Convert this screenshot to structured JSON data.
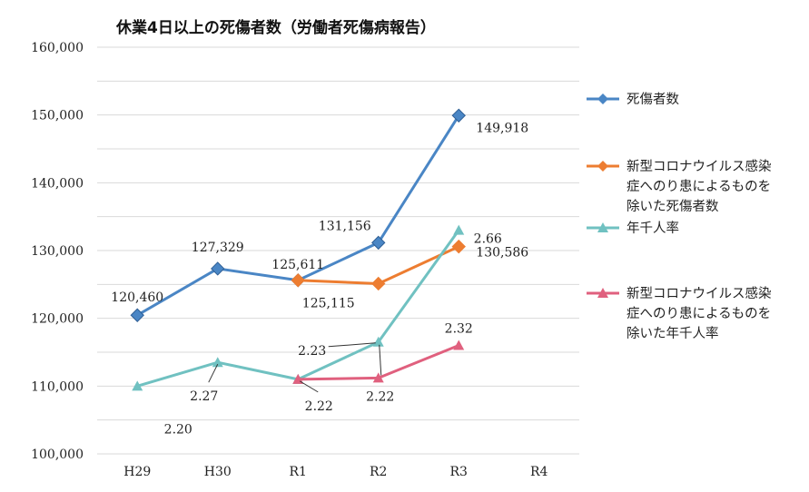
{
  "chart_data": {
    "type": "line",
    "title": "休業4日以上の死傷者数（労働者死傷病報告）",
    "categories": [
      "H29",
      "H30",
      "R1",
      "R2",
      "R3",
      "R4"
    ],
    "ylim": [
      100000,
      160000
    ],
    "yticks": [
      "100,000",
      "110,000",
      "120,000",
      "130,000",
      "140,000",
      "150,000",
      "160,000"
    ],
    "ytick_values": [
      100000,
      110000,
      120000,
      130000,
      140000,
      150000,
      160000
    ],
    "grid": true,
    "legend_position": "right",
    "series": [
      {
        "name": "死傷者数",
        "color": "#4a86c5",
        "marker": "diamond",
        "values": [
          120460,
          127329,
          125611,
          131156,
          149918,
          null
        ],
        "labels": [
          "120,460",
          "127,329",
          "125,611",
          "131,156",
          "149,918",
          null
        ]
      },
      {
        "name": "新型コロナウイルス感染症へのり患によるものを除いた死傷者数",
        "legend_lines": [
          "新型コロナウイルス感染",
          "症へのり患によるものを",
          "除いた死傷者数"
        ],
        "color": "#ed7d31",
        "marker": "diamond",
        "values": [
          null,
          null,
          125611,
          125115,
          130586,
          null
        ],
        "labels": [
          null,
          null,
          null,
          "125,115",
          "130,586",
          null
        ]
      },
      {
        "name": "年千人率",
        "color": "#70c1c1",
        "marker": "triangle",
        "values": [
          2.2,
          2.27,
          2.22,
          2.23,
          2.66,
          null
        ],
        "plot_values": [
          110000,
          113500,
          111000,
          116500,
          133000,
          null
        ],
        "labels": [
          "2.20",
          "2.27",
          "2.22",
          "2.23",
          "2.66",
          null
        ]
      },
      {
        "name": "新型コロナウイルス感染症へのり患によるものを除いた年千人率",
        "legend_lines": [
          "新型コロナウイルス感染",
          "症へのり患によるものを",
          "除いた年千人率"
        ],
        "color": "#e0607e",
        "marker": "triangle",
        "values": [
          null,
          null,
          2.22,
          2.22,
          2.32,
          null
        ],
        "plot_values": [
          null,
          null,
          111000,
          111200,
          116000,
          null
        ],
        "labels": [
          null,
          null,
          null,
          "2.22",
          "2.32",
          null
        ]
      }
    ]
  }
}
